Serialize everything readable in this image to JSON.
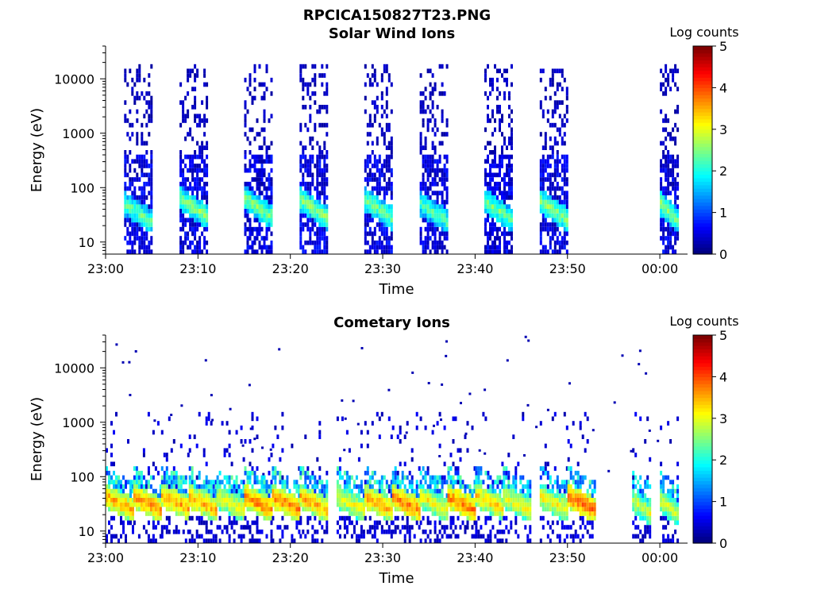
{
  "figure": {
    "title": "RPCICA150827T23.PNG"
  },
  "chart_data": [
    {
      "type": "heatmap",
      "title": "Solar Wind Ions",
      "xlabel": "Time",
      "ylabel": "Energy (eV)",
      "x_ticks": [
        "23:00",
        "23:10",
        "23:20",
        "23:30",
        "23:40",
        "23:50",
        "00:00"
      ],
      "y_ticks": [
        "10",
        "100",
        "1000",
        "10000"
      ],
      "y_scale": "log",
      "y_range_eV": [
        6,
        40000
      ],
      "colorbar": {
        "label": "Log counts",
        "ticks": [
          "0",
          "1",
          "2",
          "3",
          "4",
          "5"
        ],
        "range": [
          0,
          5
        ]
      },
      "sweeps": [
        {
          "start": "23:02",
          "end": "23:05",
          "peak_energy_eV": 32,
          "peak_log_counts": 2.4
        },
        {
          "start": "23:08",
          "end": "23:11",
          "peak_energy_eV": 40,
          "peak_log_counts": 2.6
        },
        {
          "start": "23:15",
          "end": "23:18",
          "peak_energy_eV": 40,
          "peak_log_counts": 2.6
        },
        {
          "start": "23:21",
          "end": "23:24",
          "peak_energy_eV": 38,
          "peak_log_counts": 2.6
        },
        {
          "start": "23:28",
          "end": "23:31",
          "peak_energy_eV": 38,
          "peak_log_counts": 2.5
        },
        {
          "start": "23:34",
          "end": "23:37",
          "peak_energy_eV": 32,
          "peak_log_counts": 2.4
        },
        {
          "start": "23:41",
          "end": "23:44",
          "peak_energy_eV": 35,
          "peak_log_counts": 2.5
        },
        {
          "start": "23:47",
          "end": "23:50",
          "peak_energy_eV": 35,
          "peak_log_counts": 2.6
        },
        {
          "start": "00:00",
          "end": "00:02",
          "peak_energy_eV": 32,
          "peak_log_counts": 2.6
        }
      ]
    },
    {
      "type": "heatmap",
      "title": "Cometary Ions",
      "xlabel": "Time",
      "ylabel": "Energy (eV)",
      "x_ticks": [
        "23:00",
        "23:10",
        "23:20",
        "23:30",
        "23:40",
        "23:50",
        "00:00"
      ],
      "y_ticks": [
        "10",
        "100",
        "1000",
        "10000"
      ],
      "y_scale": "log",
      "y_range_eV": [
        6,
        40000
      ],
      "colorbar": {
        "label": "Log counts",
        "ticks": [
          "0",
          "1",
          "2",
          "3",
          "4",
          "5"
        ],
        "range": [
          0,
          5
        ]
      },
      "sweeps": [
        {
          "start": "23:00",
          "end": "23:03",
          "peak_energy_eV": 30,
          "peak_log_counts": 3.6
        },
        {
          "start": "23:03",
          "end": "23:06",
          "peak_energy_eV": 30,
          "peak_log_counts": 3.7
        },
        {
          "start": "23:06",
          "end": "23:09",
          "peak_energy_eV": 32,
          "peak_log_counts": 3.6
        },
        {
          "start": "23:09",
          "end": "23:12",
          "peak_energy_eV": 30,
          "peak_log_counts": 3.6
        },
        {
          "start": "23:12",
          "end": "23:15",
          "peak_energy_eV": 30,
          "peak_log_counts": 3.2
        },
        {
          "start": "23:15",
          "end": "23:18",
          "peak_energy_eV": 30,
          "peak_log_counts": 3.8
        },
        {
          "start": "23:18",
          "end": "23:21",
          "peak_energy_eV": 30,
          "peak_log_counts": 3.8
        },
        {
          "start": "23:21",
          "end": "23:24",
          "peak_energy_eV": 30,
          "peak_log_counts": 3.6
        },
        {
          "start": "23:25",
          "end": "23:28",
          "peak_energy_eV": 30,
          "peak_log_counts": 3.2
        },
        {
          "start": "23:28",
          "end": "23:31",
          "peak_energy_eV": 30,
          "peak_log_counts": 3.6
        },
        {
          "start": "23:31",
          "end": "23:34",
          "peak_energy_eV": 30,
          "peak_log_counts": 3.8
        },
        {
          "start": "23:34",
          "end": "23:37",
          "peak_energy_eV": 30,
          "peak_log_counts": 3.2
        },
        {
          "start": "23:37",
          "end": "23:40",
          "peak_energy_eV": 30,
          "peak_log_counts": 3.8
        },
        {
          "start": "23:40",
          "end": "23:43",
          "peak_energy_eV": 32,
          "peak_log_counts": 3.4
        },
        {
          "start": "23:43",
          "end": "23:46",
          "peak_energy_eV": 30,
          "peak_log_counts": 3.2
        },
        {
          "start": "23:47",
          "end": "23:50",
          "peak_energy_eV": 30,
          "peak_log_counts": 3.2
        },
        {
          "start": "23:50",
          "end": "23:53",
          "peak_energy_eV": 30,
          "peak_log_counts": 3.9
        },
        {
          "start": "23:57",
          "end": "23:59",
          "peak_energy_eV": 25,
          "peak_log_counts": 3.0
        },
        {
          "start": "00:00",
          "end": "00:02",
          "peak_energy_eV": 25,
          "peak_log_counts": 3.0
        }
      ]
    }
  ]
}
